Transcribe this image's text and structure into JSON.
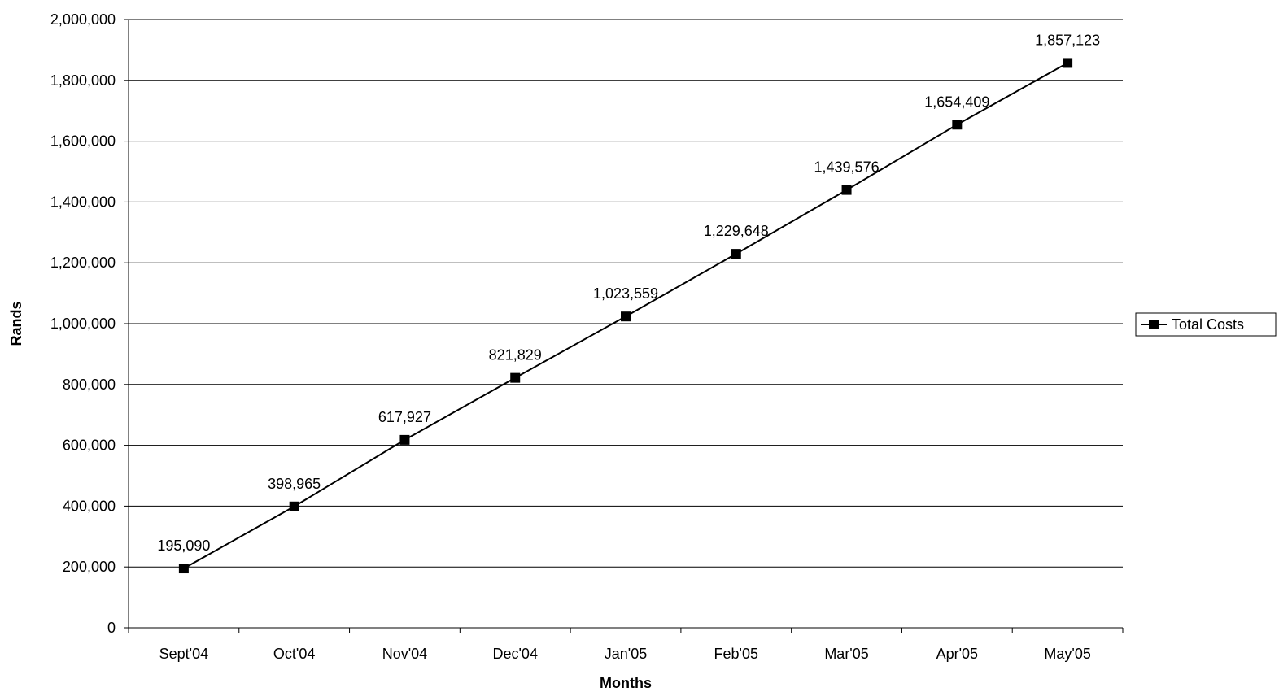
{
  "chart_data": {
    "type": "line",
    "title": "",
    "xlabel": "Months",
    "ylabel": "Rands",
    "categories": [
      "Sept'04",
      "Oct'04",
      "Nov'04",
      "Dec'04",
      "Jan'05",
      "Feb'05",
      "Mar'05",
      "Apr'05",
      "May'05"
    ],
    "series": [
      {
        "name": "Total Costs",
        "values": [
          195090,
          398965,
          617927,
          821829,
          1023559,
          1229648,
          1439576,
          1654409,
          1857123
        ],
        "data_labels": [
          "195,090",
          "398,965",
          "617,927",
          "821,829",
          "1,023,559",
          "1,229,648",
          "1,439,576",
          "1,654,409",
          "1,857,123"
        ],
        "color": "#000000",
        "marker": "square"
      }
    ],
    "ylim": [
      0,
      2000000
    ],
    "yticks": [
      0,
      200000,
      400000,
      600000,
      800000,
      1000000,
      1200000,
      1400000,
      1600000,
      1800000,
      2000000
    ],
    "ytick_labels": [
      "0",
      "200,000",
      "400,000",
      "600,000",
      "800,000",
      "1,000,000",
      "1,200,000",
      "1,400,000",
      "1,600,000",
      "1,800,000",
      "2,000,000"
    ],
    "grid": true,
    "legend_position": "right"
  }
}
